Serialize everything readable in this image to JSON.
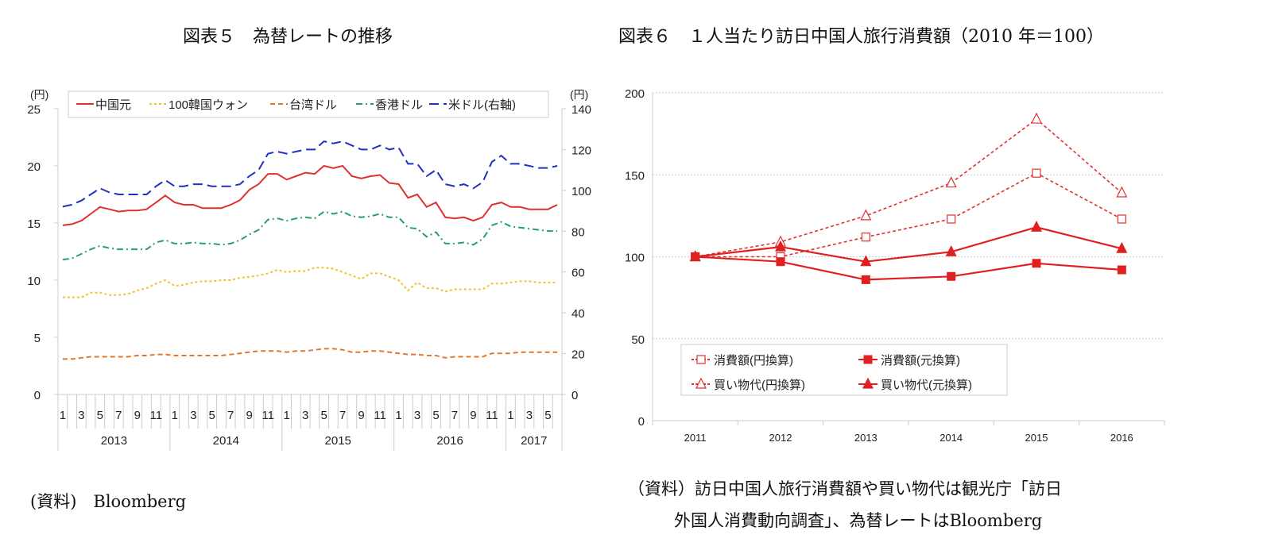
{
  "left": {
    "title": "図表５　為替レートの推移",
    "source": "(資料)　Bloomberg"
  },
  "right": {
    "title": "図表６　１人当たり訪日中国人旅行消費額（2010 年＝100）",
    "source_line1": "（資料）訪日中国人旅行消費額や買い物代は観光庁「訪日",
    "source_line2": "外国人消費動向調査」、為替レートはBloomberg"
  },
  "chart_data": [
    {
      "type": "line",
      "title": "図表５　為替レートの推移",
      "ylabel": "(円)",
      "y2label": "(円)",
      "ylim": [
        0,
        25
      ],
      "y2lim": [
        0,
        140
      ],
      "yticks": [
        0,
        5,
        10,
        15,
        20,
        25
      ],
      "y2ticks": [
        0,
        20,
        40,
        60,
        80,
        100,
        120,
        140
      ],
      "month_tick_labels": [
        "1",
        "3",
        "5",
        "7",
        "9",
        "11"
      ],
      "years": [
        "2013",
        "2014",
        "2015",
        "2016",
        "2017"
      ],
      "x_start": "2013-01",
      "x_end": "2017-06",
      "legend_position": "top",
      "grid": false,
      "series": [
        {
          "name": "中国元",
          "axis": "left",
          "color": "#e03030",
          "style": "solid",
          "values": [
            14.8,
            14.9,
            15.2,
            15.8,
            16.4,
            16.2,
            16.0,
            16.1,
            16.1,
            16.2,
            16.8,
            17.4,
            16.8,
            16.6,
            16.6,
            16.3,
            16.3,
            16.3,
            16.6,
            17.0,
            17.9,
            18.4,
            19.3,
            19.3,
            18.8,
            19.1,
            19.4,
            19.3,
            20.0,
            19.8,
            20.0,
            19.1,
            18.9,
            19.1,
            19.2,
            18.5,
            18.4,
            17.2,
            17.5,
            16.4,
            16.8,
            15.5,
            15.4,
            15.5,
            15.2,
            15.5,
            16.6,
            16.8,
            16.4,
            16.4,
            16.2,
            16.2,
            16.2,
            16.6
          ]
        },
        {
          "name": "100韓国ウォン",
          "axis": "left",
          "color": "#f2c230",
          "style": "dotted",
          "values": [
            8.5,
            8.5,
            8.5,
            8.9,
            8.9,
            8.7,
            8.7,
            8.8,
            9.1,
            9.3,
            9.7,
            10.0,
            9.5,
            9.6,
            9.8,
            9.9,
            9.9,
            10.0,
            10.0,
            10.2,
            10.3,
            10.4,
            10.6,
            10.9,
            10.7,
            10.8,
            10.8,
            11.1,
            11.1,
            11.0,
            10.7,
            10.4,
            10.1,
            10.6,
            10.6,
            10.3,
            10.0,
            9.1,
            9.8,
            9.3,
            9.3,
            9.0,
            9.2,
            9.2,
            9.2,
            9.2,
            9.7,
            9.7,
            9.8,
            9.9,
            9.9,
            9.8,
            9.8,
            9.8
          ]
        },
        {
          "name": "台湾ドル",
          "axis": "left",
          "color": "#e07830",
          "style": "dashed",
          "values": [
            3.1,
            3.1,
            3.2,
            3.3,
            3.3,
            3.3,
            3.3,
            3.3,
            3.4,
            3.4,
            3.5,
            3.5,
            3.4,
            3.4,
            3.4,
            3.4,
            3.4,
            3.4,
            3.5,
            3.6,
            3.7,
            3.8,
            3.8,
            3.8,
            3.7,
            3.8,
            3.8,
            3.9,
            4.0,
            4.0,
            3.9,
            3.7,
            3.7,
            3.8,
            3.8,
            3.7,
            3.6,
            3.5,
            3.5,
            3.4,
            3.4,
            3.2,
            3.3,
            3.3,
            3.3,
            3.3,
            3.6,
            3.6,
            3.6,
            3.7,
            3.7,
            3.7,
            3.7,
            3.7
          ]
        },
        {
          "name": "香港ドル",
          "axis": "left",
          "color": "#2aa060",
          "style": "dashdot",
          "values": [
            11.8,
            11.9,
            12.3,
            12.7,
            13.0,
            12.8,
            12.7,
            12.7,
            12.7,
            12.7,
            13.3,
            13.5,
            13.2,
            13.2,
            13.3,
            13.2,
            13.2,
            13.1,
            13.2,
            13.5,
            14.0,
            14.4,
            15.3,
            15.4,
            15.2,
            15.4,
            15.5,
            15.4,
            16.0,
            15.8,
            16.0,
            15.6,
            15.5,
            15.6,
            15.8,
            15.5,
            15.5,
            14.6,
            14.5,
            13.8,
            14.2,
            13.2,
            13.2,
            13.3,
            13.1,
            13.6,
            14.8,
            15.1,
            14.7,
            14.6,
            14.5,
            14.4,
            14.3,
            14.3
          ]
        },
        {
          "name": "米ドル(右軸)",
          "axis": "right",
          "color": "#2030c0",
          "style": "longdash",
          "values": [
            92,
            93,
            95,
            98,
            101,
            99,
            98,
            98,
            98,
            98,
            102,
            105,
            102,
            102,
            103,
            103,
            102,
            102,
            102,
            103,
            107,
            110,
            118,
            119,
            118,
            119,
            120,
            120,
            124,
            123,
            124,
            122,
            120,
            120,
            122,
            120,
            121,
            113,
            113,
            107,
            110,
            103,
            102,
            103,
            101,
            104,
            114,
            117,
            113,
            113,
            112,
            111,
            111,
            112
          ]
        }
      ]
    },
    {
      "type": "line",
      "title": "図表６　１人当たり訪日中国人旅行消費額（2010 年＝100）",
      "categories": [
        "2011",
        "2012",
        "2013",
        "2014",
        "2015",
        "2016"
      ],
      "ylim": [
        0,
        200
      ],
      "yticks": [
        0,
        50,
        100,
        150,
        200
      ],
      "grid": true,
      "legend_position": "bottom-left",
      "series": [
        {
          "name": "消費額(円換算)",
          "color": "#e03030",
          "style": "dashed",
          "marker": "square-open",
          "values": [
            100,
            100,
            112,
            123,
            151,
            123
          ]
        },
        {
          "name": "消費額(元換算)",
          "color": "#e02020",
          "style": "solid",
          "marker": "square-filled",
          "values": [
            100,
            97,
            86,
            88,
            96,
            92
          ]
        },
        {
          "name": "買い物代(円換算)",
          "color": "#e03030",
          "style": "dashed",
          "marker": "triangle-open",
          "values": [
            100,
            109,
            125,
            145,
            184,
            139
          ]
        },
        {
          "name": "買い物代(元換算)",
          "color": "#e02020",
          "style": "solid",
          "marker": "triangle-filled",
          "values": [
            100,
            106,
            97,
            103,
            118,
            105
          ]
        }
      ]
    }
  ]
}
